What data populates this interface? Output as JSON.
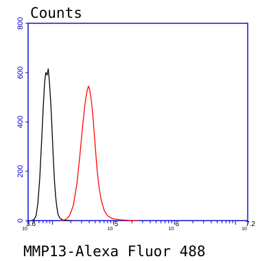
{
  "chart_data": {
    "type": "line",
    "title": "Counts",
    "xlabel": "MMP13-Alexa Fluor 488",
    "ylabel": "",
    "x_scale": "log",
    "xlim_log10": [
      3.6,
      7.2
    ],
    "ylim": [
      0,
      800
    ],
    "yticks": [
      {
        "value": 0,
        "label": "0"
      },
      {
        "value": 200,
        "label": "200"
      },
      {
        "value": 400,
        "label": "400"
      },
      {
        "value": 600,
        "label": "600"
      },
      {
        "value": 800,
        "label": "800"
      }
    ],
    "xticks": [
      {
        "log10": 3.6,
        "base": "10",
        "exp": "3.6"
      },
      {
        "log10": 5,
        "base": "10",
        "exp": "5"
      },
      {
        "log10": 6,
        "base": "10",
        "exp": "6"
      },
      {
        "log10": 7.2,
        "base": "10",
        "exp": "7.2"
      }
    ],
    "series": [
      {
        "color": "#000000",
        "points": [
          [
            3.66,
            0
          ],
          [
            3.7,
            5
          ],
          [
            3.73,
            20
          ],
          [
            3.76,
            70
          ],
          [
            3.79,
            170
          ],
          [
            3.82,
            320
          ],
          [
            3.85,
            470
          ],
          [
            3.87,
            560
          ],
          [
            3.89,
            600
          ],
          [
            3.91,
            590
          ],
          [
            3.93,
            615
          ],
          [
            3.95,
            560
          ],
          [
            3.97,
            480
          ],
          [
            3.99,
            380
          ],
          [
            4.01,
            270
          ],
          [
            4.03,
            170
          ],
          [
            4.05,
            100
          ],
          [
            4.07,
            55
          ],
          [
            4.09,
            25
          ],
          [
            4.12,
            10
          ],
          [
            4.16,
            3
          ],
          [
            4.22,
            1
          ],
          [
            4.3,
            0
          ]
        ]
      },
      {
        "color": "#ff0000",
        "points": [
          [
            4.15,
            0
          ],
          [
            4.22,
            5
          ],
          [
            4.28,
            20
          ],
          [
            4.34,
            60
          ],
          [
            4.4,
            150
          ],
          [
            4.45,
            270
          ],
          [
            4.5,
            400
          ],
          [
            4.54,
            490
          ],
          [
            4.57,
            530
          ],
          [
            4.59,
            545
          ],
          [
            4.61,
            530
          ],
          [
            4.64,
            480
          ],
          [
            4.67,
            400
          ],
          [
            4.7,
            300
          ],
          [
            4.73,
            210
          ],
          [
            4.76,
            140
          ],
          [
            4.8,
            80
          ],
          [
            4.85,
            40
          ],
          [
            4.9,
            20
          ],
          [
            4.98,
            8
          ],
          [
            5.1,
            3
          ],
          [
            5.25,
            1
          ],
          [
            5.4,
            0
          ]
        ]
      }
    ],
    "grid": false,
    "legend": "none",
    "axis_color": "#0000cc"
  }
}
